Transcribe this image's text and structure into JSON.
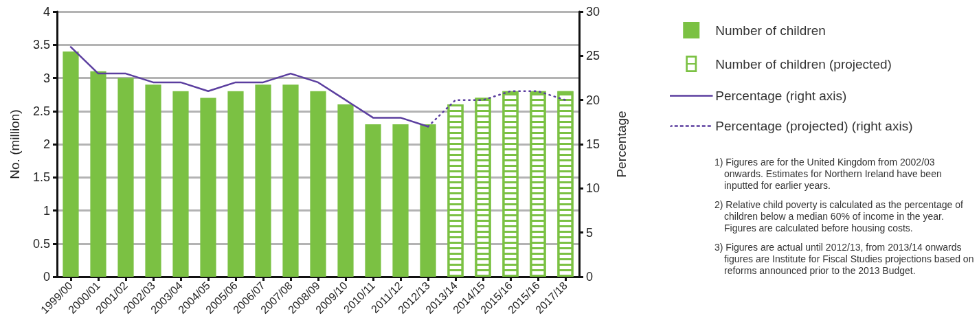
{
  "chart_data": {
    "type": "bar",
    "ylabel": "No. (million)",
    "y2label": "Percentage",
    "categories": [
      "1999/00",
      "2000/01",
      "2001/02",
      "2002/03",
      "2003/04",
      "2004/05",
      "2005/06",
      "2006/07",
      "2007/08",
      "2008/09",
      "2009/10",
      "2010/11",
      "2011/12",
      "2012/13",
      "2013/14",
      "2014/15",
      "2015/16",
      "2015/16",
      "2017/18"
    ],
    "series": [
      {
        "name": "Number of children",
        "color": "#7bc143",
        "values": [
          3.4,
          3.1,
          3.0,
          2.9,
          2.8,
          2.7,
          2.8,
          2.9,
          2.9,
          2.8,
          2.6,
          2.3,
          2.3,
          2.3,
          null,
          null,
          null,
          null,
          null
        ]
      },
      {
        "name": "Number of children (projected)",
        "color": "#7bc143",
        "values": [
          null,
          null,
          null,
          null,
          null,
          null,
          null,
          null,
          null,
          null,
          null,
          null,
          null,
          null,
          2.6,
          2.7,
          2.8,
          2.8,
          2.8
        ]
      },
      {
        "name": "Percentage (right axis)",
        "type": "line",
        "axis": "y2",
        "color": "#5b3e9f",
        "line_style": "solid",
        "values": [
          26,
          23,
          23,
          22,
          22,
          21,
          22,
          22,
          23,
          22,
          20,
          18,
          18,
          17,
          null,
          null,
          null,
          null,
          null
        ]
      },
      {
        "name": "Percentage (projected) (right axis)",
        "type": "line",
        "axis": "y2",
        "color": "#5b3e9f",
        "line_style": "dotted",
        "values": [
          null,
          null,
          null,
          null,
          null,
          null,
          null,
          null,
          null,
          null,
          null,
          null,
          null,
          17,
          20,
          20,
          21,
          21,
          20
        ]
      }
    ],
    "ylim": [
      0,
      4
    ],
    "yticks": [
      0,
      0.5,
      1,
      1.5,
      2,
      2.5,
      3,
      3.5,
      4
    ],
    "y2lim": [
      0,
      30
    ],
    "y2ticks": [
      0,
      5,
      10,
      15,
      20,
      25,
      30
    ],
    "grid": "y",
    "legend": "right",
    "marker": "none",
    "annotations": [
      "1) Figures are for the United Kingdom from 2002/03 onwards. Estimates for Northern Ireland have been inputted for earlier years.",
      "2) Relative child poverty is calculated as the percentage of children below a median 60% of income in the year. Figures are calculated before housing costs.",
      "3) Figures are actual until 2012/13, from 2013/14 onwards figures are Institute for Fiscal Studies projections based on reforms announced prior to the 2013 Budget."
    ]
  }
}
